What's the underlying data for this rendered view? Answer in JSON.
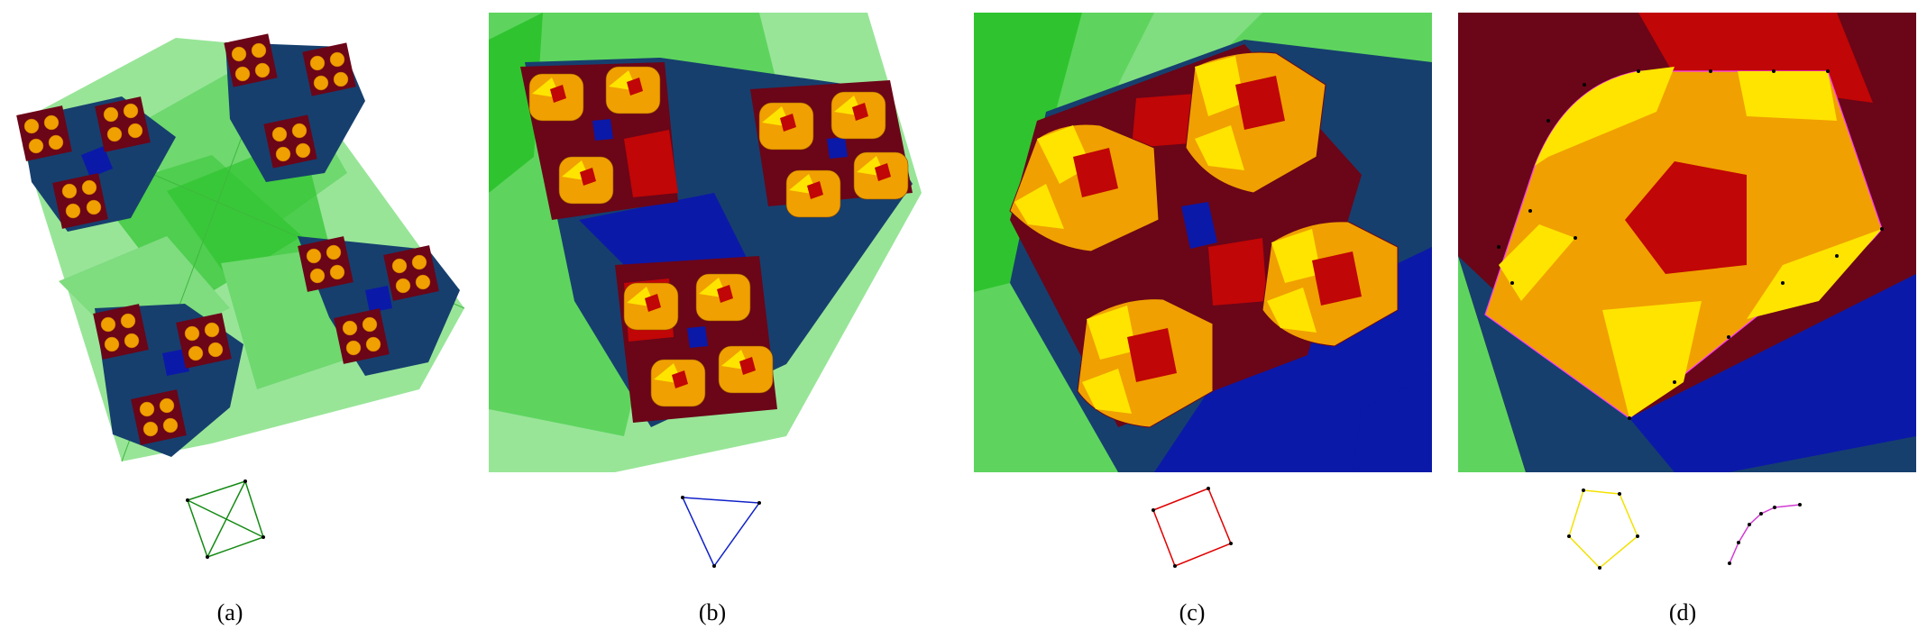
{
  "figure": {
    "labels": [
      "(a)",
      "(b)",
      "(c)",
      "(d)"
    ]
  },
  "colors": {
    "green_light": "#98e598",
    "green_mid": "#5ed45e",
    "green_dark": "#2fc42f",
    "navy": "#163f6e",
    "blue": "#0b19a8",
    "maroon": "#6b0518",
    "red": "#c00606",
    "orange": "#f0a000",
    "yellow": "#ffe400",
    "magenta": "#ff3cff",
    "graph_green": "#138a13",
    "graph_blue": "#1020c8",
    "graph_red": "#e00000",
    "graph_yellow": "#f2e200",
    "graph_magenta": "#d23cd2"
  },
  "insets": {
    "a": "complete-graph-k4",
    "b": "triangle-graph",
    "c": "square-graph",
    "d": [
      "pentagon-graph",
      "curve-path"
    ]
  }
}
